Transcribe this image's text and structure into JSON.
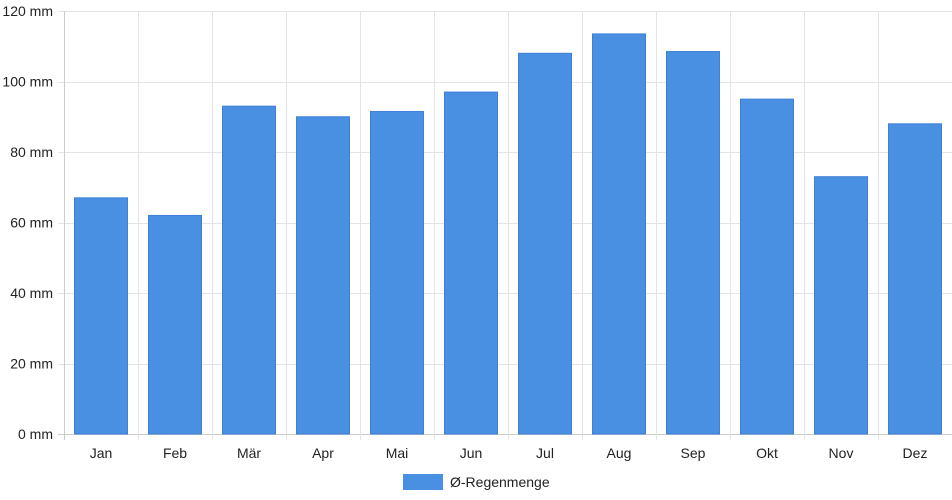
{
  "chart_data": {
    "type": "bar",
    "categories": [
      "Jan",
      "Feb",
      "Mär",
      "Apr",
      "Mai",
      "Jun",
      "Jul",
      "Aug",
      "Sep",
      "Okt",
      "Nov",
      "Dez"
    ],
    "series": [
      {
        "name": "Ø-Regenmenge",
        "values": [
          67,
          62,
          93,
          90,
          91.5,
          97,
          108,
          113.5,
          108.5,
          95,
          73,
          88
        ],
        "color": "#4a90e2"
      }
    ],
    "y_ticks": [
      "0 mm",
      "20 mm",
      "40 mm",
      "60 mm",
      "80 mm",
      "100 mm",
      "120 mm"
    ],
    "y_tick_values": [
      0,
      20,
      40,
      60,
      80,
      100,
      120
    ],
    "ylim": [
      0,
      120
    ],
    "y_unit": "mm",
    "grid": true,
    "legend": "bottom-center",
    "title": "",
    "xlabel": "",
    "ylabel": ""
  }
}
